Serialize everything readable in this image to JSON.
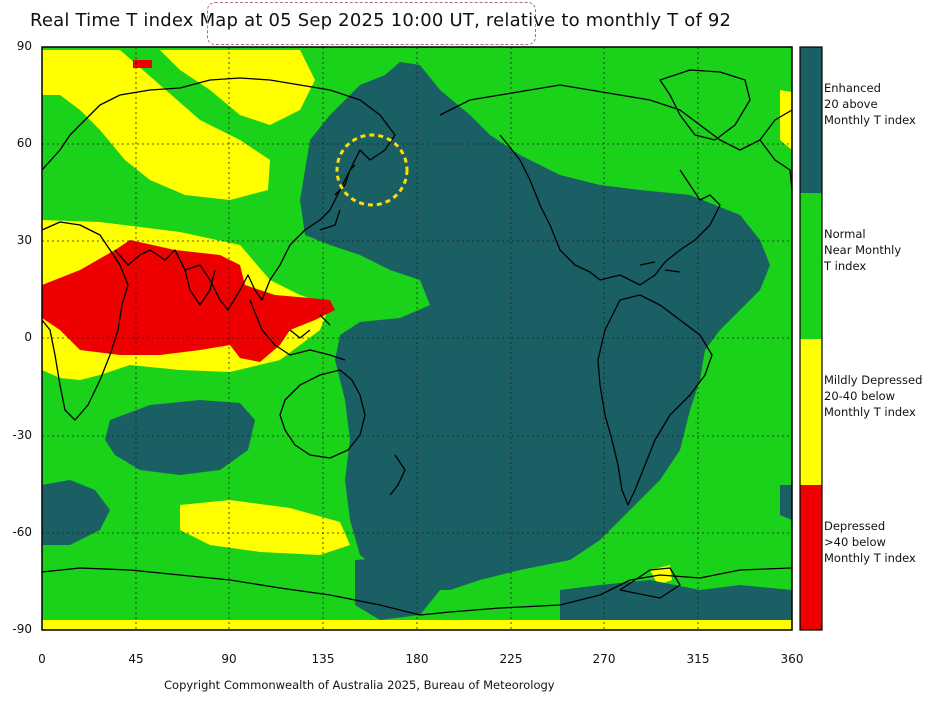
{
  "title": "Real Time T index Map at 05 Sep 2025 10:00 UT, relative to monthly T of 92",
  "y_ticks": [
    "90",
    "60",
    "30",
    "0",
    "-30",
    "-60",
    "-90"
  ],
  "x_ticks": [
    "0",
    "45",
    "90",
    "135",
    "180",
    "225",
    "270",
    "315",
    "360"
  ],
  "copyright": "Copyright Commonwealth of Australia 2025, Bureau of Meteorology",
  "legend": [
    {
      "line1": "Enhanced",
      "line2": "20 above",
      "line3": "Monthly T index",
      "color": "#1a5f63"
    },
    {
      "line1": "Normal",
      "line2": "Near Monthly",
      "line3": "T index",
      "color": "#19d219"
    },
    {
      "line1": "Mildly Depressed",
      "line2": "20-40 below",
      "line3": "Monthly T index",
      "color": "#ffff00"
    },
    {
      "line1": "Depressed",
      "line2": ">40 below",
      "line3": "Monthly T index",
      "color": "#ee0000"
    }
  ],
  "colors": {
    "enhanced": "#1a5f63",
    "normal": "#19d219",
    "mild": "#ffff00",
    "depressed": "#ee0000",
    "coast": "#000000"
  },
  "axes": {
    "lon_range": [
      0,
      360
    ],
    "lat_range": [
      -90,
      90
    ],
    "grid": true
  }
}
